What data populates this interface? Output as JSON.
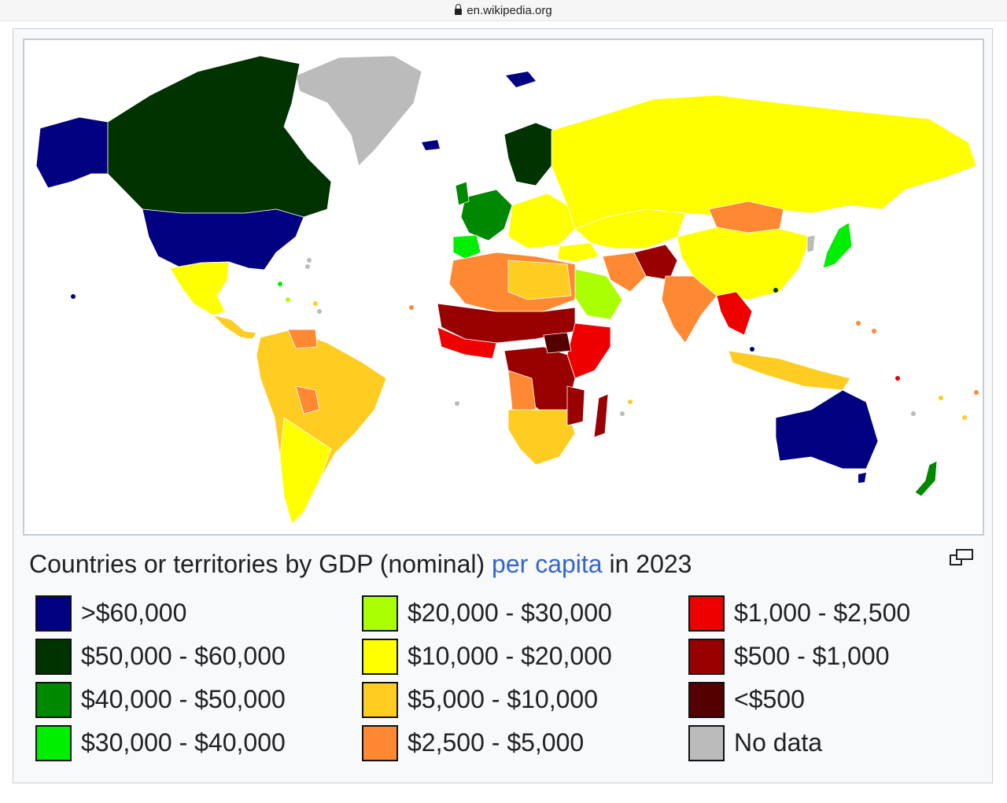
{
  "browser": {
    "url": "en.wikipedia.org"
  },
  "caption": {
    "prefix": "Countries or territories by GDP (nominal) ",
    "link": "per capita",
    "suffix": " in 2023"
  },
  "legend": [
    {
      "label": ">$60,000",
      "color": "#000080"
    },
    {
      "label": "$50,000 - $60,000",
      "color": "#003300"
    },
    {
      "label": "$40,000 - $50,000",
      "color": "#008800"
    },
    {
      "label": "$30,000 - $40,000",
      "color": "#00ee00"
    },
    {
      "label": "$20,000 - $30,000",
      "color": "#aaff00"
    },
    {
      "label": "$10,000 - $20,000",
      "color": "#ffff00"
    },
    {
      "label": "$5,000 - $10,000",
      "color": "#ffcc22"
    },
    {
      "label": "$2,500 - $5,000",
      "color": "#ff8833"
    },
    {
      "label": "$1,000 - $2,500",
      "color": "#ee0000"
    },
    {
      "label": "$500 - $1,000",
      "color": "#990000"
    },
    {
      "label": "<$500",
      "color": "#550000"
    },
    {
      "label": "No data",
      "color": "#bbbbbb"
    }
  ],
  "icons": {
    "lock": "lock-icon",
    "enlarge": "enlarge-icon"
  }
}
